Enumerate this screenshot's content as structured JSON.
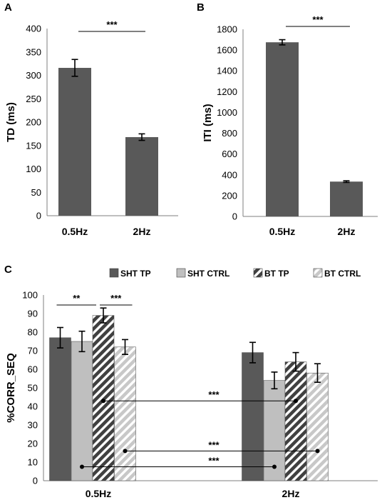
{
  "colors": {
    "dark_bar": "#595959",
    "light_bar": "#bfbfbf",
    "axis": "#7f7f7f",
    "text": "#000000"
  },
  "chart_data": [
    {
      "panel": "A",
      "type": "bar",
      "categories": [
        "0.5Hz",
        "2Hz"
      ],
      "values": [
        316,
        168
      ],
      "errors": [
        18,
        7
      ],
      "ylabel": "TD (ms)",
      "xlabel": "",
      "ylim": [
        0,
        400
      ],
      "yticks": [
        0,
        50,
        100,
        150,
        200,
        250,
        300,
        350,
        400
      ],
      "grid": false,
      "significance": [
        {
          "from": 0,
          "to": 1,
          "label": "***"
        }
      ]
    },
    {
      "panel": "B",
      "type": "bar",
      "categories": [
        "0.5Hz",
        "2Hz"
      ],
      "values": [
        1675,
        335
      ],
      "errors": [
        25,
        8
      ],
      "ylabel": "ITI (ms)",
      "xlabel": "",
      "ylim": [
        0,
        1800
      ],
      "yticks": [
        0,
        200,
        400,
        600,
        800,
        1000,
        1200,
        1400,
        1600,
        1800
      ],
      "grid": false,
      "significance": [
        {
          "from": 0,
          "to": 1,
          "label": "***"
        }
      ]
    },
    {
      "panel": "C",
      "type": "bar",
      "categories": [
        "0.5Hz",
        "2Hz"
      ],
      "ylabel": "%CORR_SEQ",
      "xlabel": "",
      "ylim": [
        0,
        100
      ],
      "yticks": [
        0,
        10,
        20,
        30,
        40,
        50,
        60,
        70,
        80,
        90,
        100
      ],
      "grid": false,
      "legend_position": "top",
      "series": [
        {
          "name": "SHT TP",
          "values": [
            77,
            69
          ],
          "errors": [
            5.5,
            5.5
          ],
          "fill": "dark"
        },
        {
          "name": "SHT CTRL",
          "values": [
            75,
            54
          ],
          "errors": [
            5.5,
            4.5
          ],
          "fill": "light"
        },
        {
          "name": "BT TP",
          "values": [
            89,
            64
          ],
          "errors": [
            4,
            5
          ],
          "fill": "dark-hatch"
        },
        {
          "name": "BT CTRL",
          "values": [
            72,
            58
          ],
          "errors": [
            4,
            5
          ],
          "fill": "light-hatch"
        }
      ],
      "significance": [
        {
          "label": "**",
          "type": "bracket",
          "from": [
            0,
            0
          ],
          "to": [
            0,
            2
          ]
        },
        {
          "label": "***",
          "type": "bracket",
          "from": [
            0,
            2
          ],
          "to": [
            0,
            3
          ]
        },
        {
          "label": "***",
          "type": "line",
          "from": [
            0,
            2
          ],
          "to": [
            1,
            2
          ]
        },
        {
          "label": "***",
          "type": "line",
          "from": [
            0,
            3
          ],
          "to": [
            1,
            3
          ]
        },
        {
          "label": "***",
          "type": "line",
          "from": [
            0,
            1
          ],
          "to": [
            1,
            1
          ]
        }
      ]
    }
  ]
}
